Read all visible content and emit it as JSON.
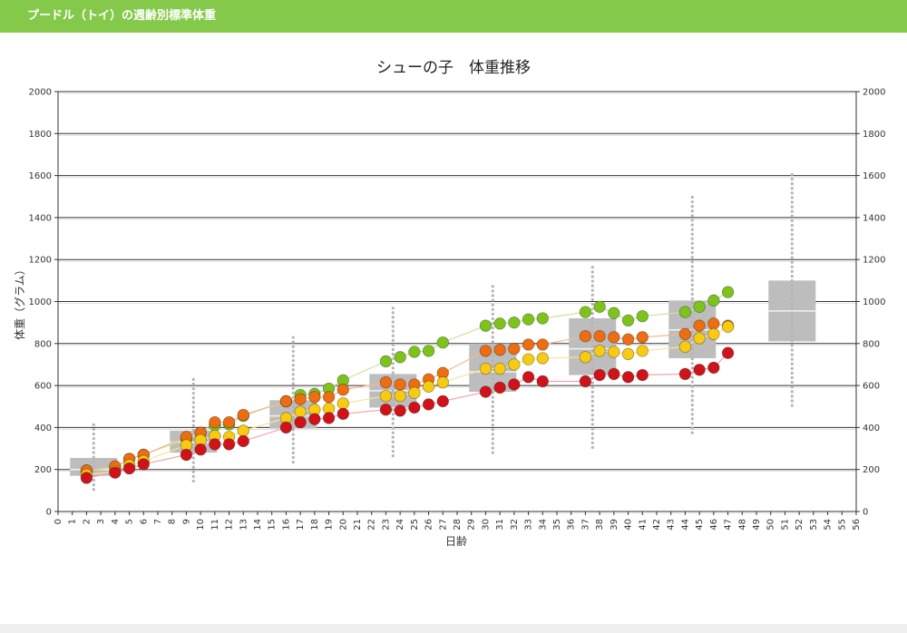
{
  "app": {
    "title": "プードル（トイ）の週齢別標準体重"
  },
  "colors": {
    "header": "#84c94a",
    "box": "#bdbdbd",
    "box_median": "#f2f2f2",
    "whisker_dots": "#b5b5b5",
    "gridline": "#333333"
  },
  "chart_data": {
    "type": "scatter",
    "title": "シューの子　体重推移",
    "xlabel": "日齢",
    "ylabel": "体重（グラム）",
    "xlim": [
      0,
      56
    ],
    "ylim": [
      0,
      2000
    ],
    "x_ticks": [
      0,
      1,
      2,
      3,
      4,
      5,
      6,
      7,
      8,
      9,
      10,
      11,
      12,
      13,
      14,
      15,
      16,
      17,
      18,
      19,
      20,
      21,
      22,
      23,
      24,
      25,
      26,
      27,
      28,
      29,
      30,
      31,
      32,
      33,
      34,
      35,
      36,
      37,
      38,
      39,
      40,
      41,
      42,
      43,
      44,
      45,
      46,
      47,
      48,
      49,
      50,
      51,
      52,
      53,
      54,
      55,
      56
    ],
    "y_ticks": [
      0,
      200,
      400,
      600,
      800,
      1000,
      1200,
      1400,
      1600,
      1800,
      2000
    ],
    "y_axis_right": true,
    "grid": true,
    "reference_boxes": [
      {
        "x": 2.5,
        "q1": 170,
        "median": 200,
        "q3": 255,
        "min": 105,
        "max": 420
      },
      {
        "x": 9.5,
        "q1": 280,
        "median": 330,
        "q3": 385,
        "min": 145,
        "max": 630
      },
      {
        "x": 16.5,
        "q1": 395,
        "median": 455,
        "q3": 530,
        "min": 235,
        "max": 830
      },
      {
        "x": 23.5,
        "q1": 495,
        "median": 575,
        "q3": 655,
        "min": 265,
        "max": 980
      },
      {
        "x": 30.5,
        "q1": 570,
        "median": 665,
        "q3": 800,
        "min": 280,
        "max": 1080
      },
      {
        "x": 37.5,
        "q1": 650,
        "median": 775,
        "q3": 920,
        "min": 305,
        "max": 1170
      },
      {
        "x": 44.5,
        "q1": 730,
        "median": 865,
        "q3": 1005,
        "min": 375,
        "max": 1510
      },
      {
        "x": 51.5,
        "q1": 810,
        "median": 955,
        "q3": 1100,
        "min": 505,
        "max": 1605
      }
    ],
    "series": [
      {
        "color": "#7dc31c",
        "line_color": "#c9e4a0",
        "points": [
          [
            2,
            195
          ],
          [
            4,
            210
          ],
          [
            5,
            250
          ],
          [
            6,
            270
          ],
          [
            9,
            345
          ],
          [
            10,
            375
          ],
          [
            11,
            410
          ],
          [
            12,
            415
          ],
          [
            13,
            455
          ],
          [
            16,
            525
          ],
          [
            17,
            555
          ],
          [
            18,
            560
          ],
          [
            19,
            585
          ],
          [
            20,
            625
          ],
          [
            23,
            715
          ],
          [
            24,
            735
          ],
          [
            25,
            760
          ],
          [
            26,
            765
          ],
          [
            27,
            805
          ],
          [
            30,
            885
          ],
          [
            31,
            895
          ],
          [
            32,
            900
          ],
          [
            33,
            915
          ],
          [
            34,
            920
          ],
          [
            37,
            950
          ],
          [
            38,
            975
          ],
          [
            39,
            945
          ],
          [
            40,
            910
          ],
          [
            41,
            930
          ],
          [
            44,
            950
          ],
          [
            45,
            975
          ],
          [
            46,
            1005
          ],
          [
            47,
            1045
          ]
        ]
      },
      {
        "color": "#ed6d12",
        "line_color": "#f6b98a",
        "points": [
          [
            2,
            195
          ],
          [
            4,
            215
          ],
          [
            5,
            250
          ],
          [
            6,
            270
          ],
          [
            9,
            355
          ],
          [
            10,
            375
          ],
          [
            11,
            425
          ],
          [
            12,
            425
          ],
          [
            13,
            460
          ],
          [
            16,
            525
          ],
          [
            17,
            535
          ],
          [
            18,
            545
          ],
          [
            19,
            545
          ],
          [
            20,
            580
          ],
          [
            23,
            615
          ],
          [
            24,
            605
          ],
          [
            25,
            605
          ],
          [
            26,
            630
          ],
          [
            27,
            660
          ],
          [
            30,
            765
          ],
          [
            31,
            770
          ],
          [
            32,
            775
          ],
          [
            33,
            795
          ],
          [
            34,
            795
          ],
          [
            37,
            835
          ],
          [
            38,
            835
          ],
          [
            39,
            830
          ],
          [
            40,
            820
          ],
          [
            41,
            830
          ],
          [
            44,
            845
          ],
          [
            45,
            885
          ],
          [
            46,
            895
          ],
          [
            47,
            885
          ]
        ]
      },
      {
        "color": "#f6cb12",
        "line_color": "#f7e59a",
        "points": [
          [
            2,
            175
          ],
          [
            4,
            190
          ],
          [
            5,
            220
          ],
          [
            6,
            240
          ],
          [
            9,
            315
          ],
          [
            10,
            340
          ],
          [
            11,
            360
          ],
          [
            12,
            355
          ],
          [
            13,
            385
          ],
          [
            16,
            445
          ],
          [
            17,
            475
          ],
          [
            18,
            485
          ],
          [
            19,
            490
          ],
          [
            20,
            515
          ],
          [
            23,
            550
          ],
          [
            24,
            550
          ],
          [
            25,
            565
          ],
          [
            26,
            595
          ],
          [
            27,
            615
          ],
          [
            30,
            680
          ],
          [
            31,
            680
          ],
          [
            32,
            700
          ],
          [
            33,
            725
          ],
          [
            34,
            730
          ],
          [
            37,
            735
          ],
          [
            38,
            765
          ],
          [
            39,
            760
          ],
          [
            40,
            750
          ],
          [
            41,
            765
          ],
          [
            44,
            785
          ],
          [
            45,
            825
          ],
          [
            46,
            845
          ],
          [
            47,
            880
          ]
        ]
      },
      {
        "color": "#d0131b",
        "line_color": "#f2a6a9",
        "points": [
          [
            2,
            160
          ],
          [
            4,
            185
          ],
          [
            5,
            205
          ],
          [
            6,
            225
          ],
          [
            9,
            270
          ],
          [
            10,
            295
          ],
          [
            11,
            320
          ],
          [
            12,
            320
          ],
          [
            13,
            335
          ],
          [
            16,
            400
          ],
          [
            17,
            425
          ],
          [
            18,
            440
          ],
          [
            19,
            445
          ],
          [
            20,
            465
          ],
          [
            23,
            485
          ],
          [
            24,
            480
          ],
          [
            25,
            495
          ],
          [
            26,
            510
          ],
          [
            27,
            525
          ],
          [
            30,
            570
          ],
          [
            31,
            590
          ],
          [
            32,
            605
          ],
          [
            33,
            640
          ],
          [
            34,
            620
          ],
          [
            37,
            620
          ],
          [
            38,
            650
          ],
          [
            39,
            655
          ],
          [
            40,
            640
          ],
          [
            41,
            650
          ],
          [
            44,
            655
          ],
          [
            45,
            675
          ],
          [
            46,
            685
          ],
          [
            47,
            755
          ]
        ]
      }
    ]
  }
}
